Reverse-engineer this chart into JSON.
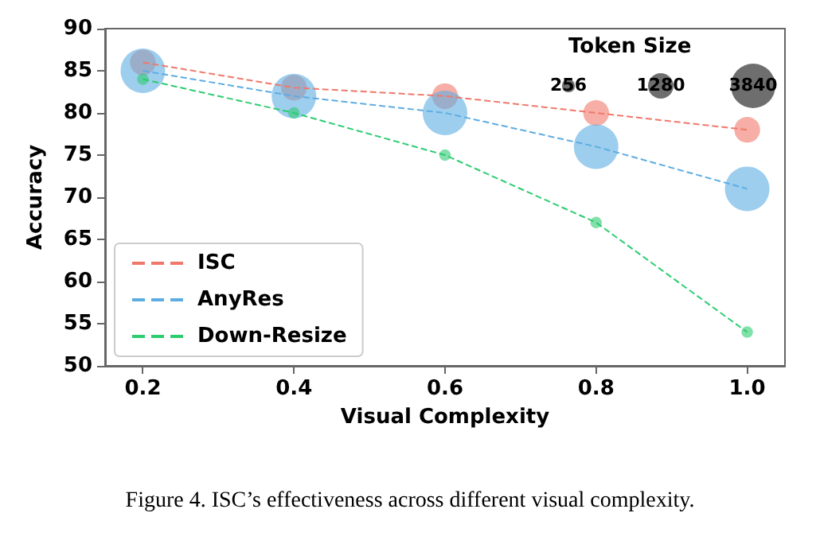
{
  "chart_data": {
    "type": "bubble",
    "xlabel": "Visual Complexity",
    "ylabel": "Accuracy",
    "legend_title": "Token Size",
    "x": [
      0.2,
      0.4,
      0.6,
      0.8,
      1.0
    ],
    "series": [
      {
        "color": "#f0786a",
        "values": [
          86,
          83,
          82,
          80,
          78
        ],
        "sizes": [
          1280,
          1280,
          1280,
          1280,
          1280
        ]
      },
      {
        "color": "#5dade2",
        "values": [
          85,
          82,
          80,
          76,
          71
        ],
        "sizes": [
          3840,
          3840,
          3840,
          3840,
          3840
        ]
      },
      {
        "color": "#2ecc71",
        "values": [
          84,
          80,
          75,
          67,
          54
        ],
        "sizes": [
          256,
          256,
          256,
          256,
          256
        ]
      },
      {
        "name": "ISC",
        "type": "line",
        "line_style": "dashed",
        "marker": "none",
        "color": "#f0786a",
        "values": [
          86,
          83,
          82,
          80,
          78
        ]
      },
      {
        "name": "AnyRes",
        "type": "line",
        "line_style": "dashed",
        "marker": "none",
        "color": "#5dade2",
        "values": [
          85,
          82,
          80,
          76,
          71
        ]
      },
      {
        "name": "Down-Resize",
        "type": "line",
        "line_style": "dashed",
        "marker": "none",
        "color": "#2ecc71",
        "values": [
          84,
          80,
          75,
          67,
          54
        ]
      }
    ],
    "size_legend": [
      256,
      1280,
      3840
    ],
    "xlim": [
      0.15,
      1.05
    ],
    "xticks": [
      0.2,
      0.4,
      0.6,
      0.8,
      {
        "value": 1,
        "label": "1.0"
      }
    ],
    "ylim": [
      50,
      90
    ],
    "yticks": [
      50,
      55,
      60,
      65,
      70,
      75,
      80,
      85,
      90
    ],
    "marker": "circle",
    "grid": false,
    "legend": "bottom left",
    "annotations": [
      "Figure 4. ISC’s effectiveness across different visual complexity."
    ]
  }
}
